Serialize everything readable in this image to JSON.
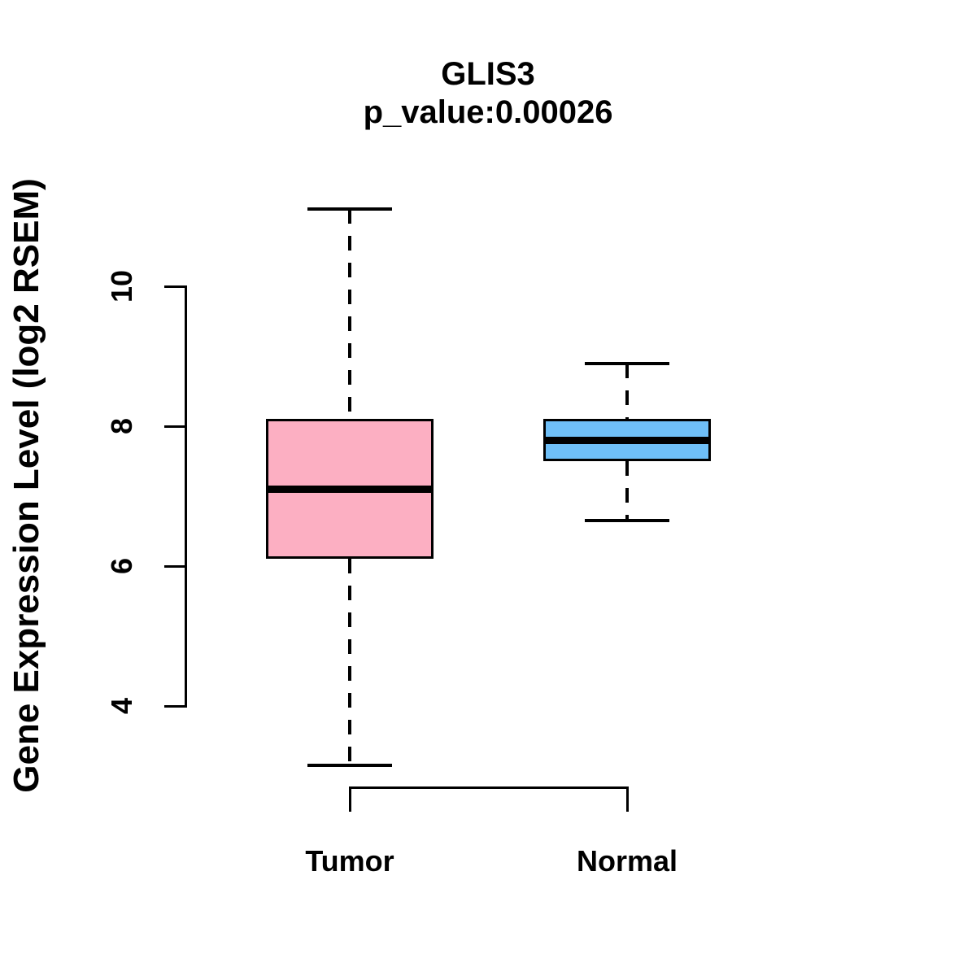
{
  "chart_data": {
    "type": "boxplot",
    "title": "GLIS3",
    "subtitle": "p_value:0.00026",
    "ylabel": "Gene Expression Level (log2 RSEM)",
    "xlabel": "",
    "categories": [
      "Tumor",
      "Normal"
    ],
    "yticks": [
      10,
      8,
      6,
      4
    ],
    "ylim": [
      3.0,
      11.2
    ],
    "grid": false,
    "legend": "none",
    "series": [
      {
        "name": "Tumor",
        "fill_color": "#FCAFC2",
        "stroke_color": "#000000",
        "whisker_low": 3.15,
        "q1": 6.1,
        "median": 7.1,
        "q3": 8.1,
        "whisker_high": 11.1
      },
      {
        "name": "Normal",
        "fill_color": "#6FBFF7",
        "stroke_color": "#000000",
        "whisker_low": 6.65,
        "q1": 7.5,
        "median": 7.8,
        "q3": 8.1,
        "whisker_high": 8.9
      }
    ]
  }
}
